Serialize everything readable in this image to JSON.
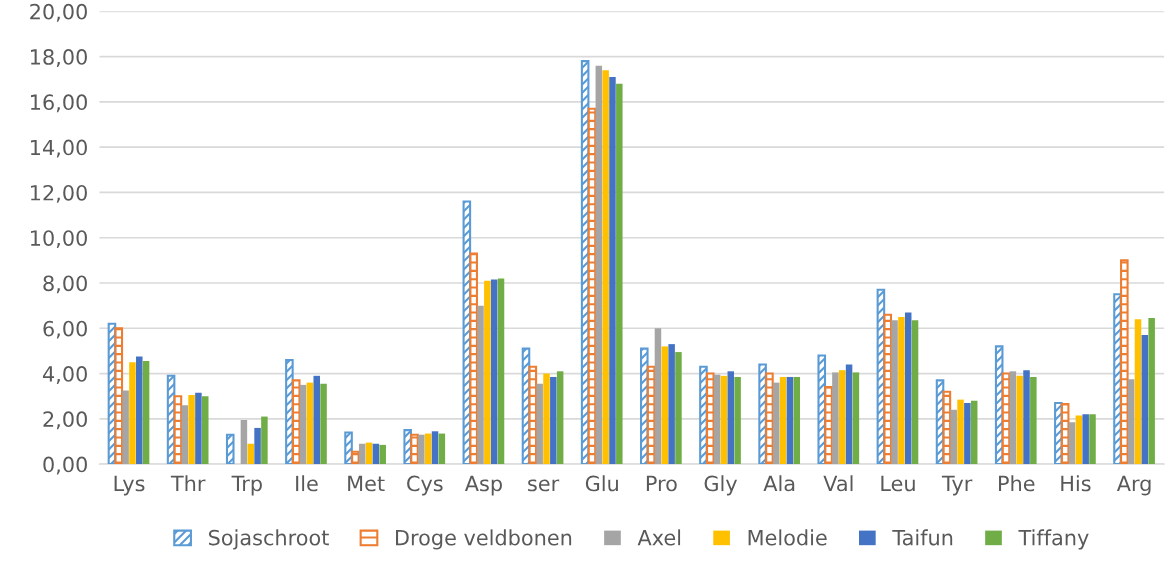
{
  "chart_data": {
    "type": "bar",
    "categories": [
      "Lys",
      "Thr",
      "Trp",
      "Ile",
      "Met",
      "Cys",
      "Asp",
      "ser",
      "Glu",
      "Pro",
      "Gly",
      "Ala",
      "Val",
      "Leu",
      "Tyr",
      "Phe",
      "His",
      "Arg"
    ],
    "series": [
      {
        "name": "Sojaschroot",
        "color": "#5b9bd5",
        "values": [
          6.2,
          3.9,
          1.3,
          4.6,
          1.4,
          1.5,
          11.6,
          5.1,
          17.8,
          5.1,
          4.3,
          4.4,
          4.8,
          7.7,
          3.7,
          5.2,
          2.7,
          7.5
        ]
      },
      {
        "name": "Droge veldbonen",
        "color": "#ed7d31",
        "values": [
          6.0,
          3.0,
          null,
          3.7,
          0.55,
          1.3,
          9.3,
          4.3,
          15.7,
          4.3,
          4.0,
          4.0,
          3.4,
          6.6,
          3.2,
          4.0,
          2.65,
          9.0
        ]
      },
      {
        "name": "Axel",
        "color": "#a5a5a5",
        "values": [
          3.25,
          2.6,
          1.95,
          3.5,
          0.9,
          1.3,
          7.0,
          3.55,
          17.6,
          6.0,
          3.95,
          3.6,
          4.05,
          6.35,
          2.4,
          4.1,
          1.85,
          3.75
        ]
      },
      {
        "name": "Melodie",
        "color": "#ffc000",
        "values": [
          4.5,
          3.05,
          0.9,
          3.6,
          0.95,
          1.35,
          8.1,
          4.0,
          17.4,
          5.2,
          3.9,
          3.85,
          4.15,
          6.5,
          2.85,
          3.9,
          2.15,
          6.4
        ]
      },
      {
        "name": "Taifun",
        "color": "#4472c4",
        "values": [
          4.75,
          3.15,
          1.6,
          3.9,
          0.9,
          1.45,
          8.15,
          3.85,
          17.1,
          5.3,
          4.1,
          3.85,
          4.4,
          6.7,
          2.7,
          4.15,
          2.2,
          5.7
        ]
      },
      {
        "name": "Tiffany",
        "color": "#70ad47",
        "values": [
          4.55,
          3.0,
          2.1,
          3.55,
          0.85,
          1.35,
          8.2,
          4.1,
          16.8,
          4.95,
          3.85,
          3.85,
          4.05,
          6.35,
          2.8,
          3.85,
          2.2,
          6.45
        ]
      }
    ],
    "ylim": [
      0,
      20
    ],
    "yticks": [
      {
        "value": 0,
        "label": "0,00"
      },
      {
        "value": 2,
        "label": "2,00"
      },
      {
        "value": 4,
        "label": "4,00"
      },
      {
        "value": 6,
        "label": "6,00"
      },
      {
        "value": 8,
        "label": "8,00"
      },
      {
        "value": 10,
        "label": "10,00"
      },
      {
        "value": 12,
        "label": "12,00"
      },
      {
        "value": 14,
        "label": "14,00"
      },
      {
        "value": 16,
        "label": "16,00"
      },
      {
        "value": 18,
        "label": "18,00"
      },
      {
        "value": 20,
        "label": "20,00"
      }
    ],
    "grid": "y",
    "legend": "bottom"
  }
}
